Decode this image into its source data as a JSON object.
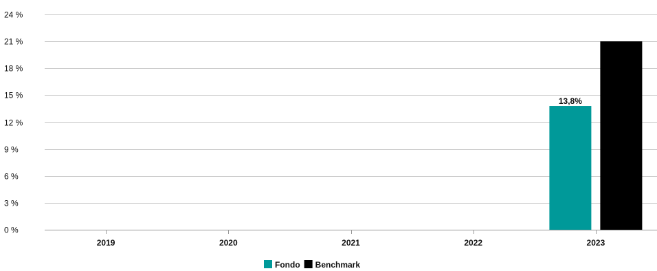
{
  "chart_data": {
    "type": "bar",
    "categories": [
      "2019",
      "2020",
      "2021",
      "2022",
      "2023"
    ],
    "series": [
      {
        "name": "Fondo",
        "color": "#009999",
        "values": [
          null,
          null,
          null,
          null,
          13.8
        ],
        "labels": [
          null,
          null,
          null,
          null,
          "13,8%"
        ]
      },
      {
        "name": "Benchmark",
        "color": "#000000",
        "values": [
          null,
          null,
          null,
          null,
          21.0
        ],
        "labels": [
          null,
          null,
          null,
          null,
          null
        ]
      }
    ],
    "y_ticks": [
      "0 %",
      "3 %",
      "6 %",
      "9 %",
      "12 %",
      "15 %",
      "18 %",
      "21 %",
      "24 %"
    ],
    "ylim": [
      0,
      24
    ],
    "grid": true,
    "legend_position": "bottom-center",
    "title": "",
    "xlabel": "",
    "ylabel": ""
  }
}
